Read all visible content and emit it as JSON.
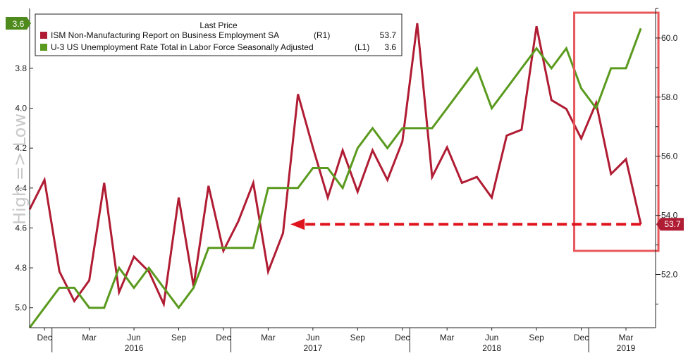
{
  "chart_data": {
    "type": "line",
    "legend": {
      "header": "Last Price",
      "placement": "top-left"
    },
    "categories": [
      "Nov 2015",
      "Dec 2015",
      "Jan 2016",
      "Feb 2016",
      "Mar 2016",
      "Apr 2016",
      "May 2016",
      "Jun 2016",
      "Jul 2016",
      "Aug 2016",
      "Sep 2016",
      "Oct 2016",
      "Nov 2016",
      "Dec 2016",
      "Jan 2017",
      "Feb 2017",
      "Mar 2017",
      "Apr 2017",
      "May 2017",
      "Jun 2017",
      "Jul 2017",
      "Aug 2017",
      "Sep 2017",
      "Oct 2017",
      "Nov 2017",
      "Dec 2017",
      "Jan 2018",
      "Feb 2018",
      "Mar 2018",
      "Apr 2018",
      "May 2018",
      "Jun 2018",
      "Jul 2018",
      "Aug 2018",
      "Sep 2018",
      "Oct 2018",
      "Nov 2018",
      "Dec 2018",
      "Jan 2019",
      "Feb 2019",
      "Mar 2019",
      "Apr 2019"
    ],
    "series": [
      {
        "name": "ISM Non-Manufacturing Report on Business Employment SA",
        "axis_code": "(R1)",
        "last_value": "53.7",
        "color": "#b01c33",
        "axis": "right",
        "values": [
          54.2,
          55.2,
          52.1,
          51.1,
          51.8,
          55.1,
          51.4,
          52.6,
          52.1,
          51.0,
          54.6,
          51.6,
          55.0,
          52.8,
          53.8,
          55.1,
          52.1,
          53.4,
          58.1,
          56.3,
          54.6,
          56.2,
          54.8,
          56.2,
          55.2,
          56.5,
          60.5,
          55.3,
          56.3,
          55.1,
          55.3,
          54.6,
          56.7,
          56.9,
          60.4,
          57.9,
          57.6,
          56.6,
          57.8,
          55.4,
          55.9,
          53.7
        ]
      },
      {
        "name": "U-3 US Unemployment Rate Total in Labor Force Seasonally Adjusted",
        "axis_code": "(L1)",
        "last_value": "3.6",
        "color": "#5a9a1e",
        "axis": "left",
        "values": [
          5.1,
          5.0,
          4.9,
          4.9,
          5.0,
          5.0,
          4.8,
          4.9,
          4.8,
          4.9,
          5.0,
          4.9,
          4.7,
          4.7,
          4.7,
          4.7,
          4.4,
          4.4,
          4.4,
          4.3,
          4.3,
          4.4,
          4.2,
          4.1,
          4.2,
          4.1,
          4.1,
          4.1,
          4.0,
          3.9,
          3.8,
          4.0,
          3.9,
          3.8,
          3.7,
          3.8,
          3.7,
          3.9,
          4.0,
          3.8,
          3.8,
          3.6
        ]
      }
    ],
    "left_axis": {
      "range": [
        5.1,
        3.5
      ],
      "ticks": [
        "3.8",
        "4.0",
        "4.2",
        "4.4",
        "4.6",
        "4.8",
        "5.0"
      ],
      "inverted": true,
      "badge": "3.6",
      "side_label": "High => Low"
    },
    "right_axis": {
      "range": [
        50.2,
        61.0
      ],
      "ticks": [
        "52.0",
        "54.0",
        "56.0",
        "58.0",
        "60.0"
      ],
      "badge": "53.7"
    },
    "x_axis": {
      "ticks": [
        {
          "label": "Dec",
          "at": 1
        },
        {
          "label": "Mar",
          "at": 4
        },
        {
          "label": "Jun",
          "at": 7
        },
        {
          "label": "Sep",
          "at": 10
        },
        {
          "label": "Dec",
          "at": 13
        },
        {
          "label": "Mar",
          "at": 16
        },
        {
          "label": "Jun",
          "at": 19
        },
        {
          "label": "Sep",
          "at": 22
        },
        {
          "label": "Dec",
          "at": 25
        },
        {
          "label": "Mar",
          "at": 28
        },
        {
          "label": "Jun",
          "at": 31
        },
        {
          "label": "Sep",
          "at": 34
        },
        {
          "label": "Dec",
          "at": 37
        },
        {
          "label": "Mar",
          "at": 40
        }
      ],
      "years": [
        {
          "label": "2016",
          "at": 7
        },
        {
          "label": "2017",
          "at": 19
        },
        {
          "label": "2018",
          "at": 31
        },
        {
          "label": "2019",
          "at": 40
        }
      ],
      "dividers_at": [
        1.5,
        13.5,
        25.5,
        37.5
      ]
    },
    "annotations": {
      "arrow": {
        "from_index": 41,
        "to_index": 17.5,
        "level": 53.7,
        "color": "#e0141e",
        "style": "dashed"
      },
      "highlight_box": {
        "from_index": 37,
        "to_index": 41.8,
        "color": "#e8575b"
      }
    },
    "grid": false
  }
}
